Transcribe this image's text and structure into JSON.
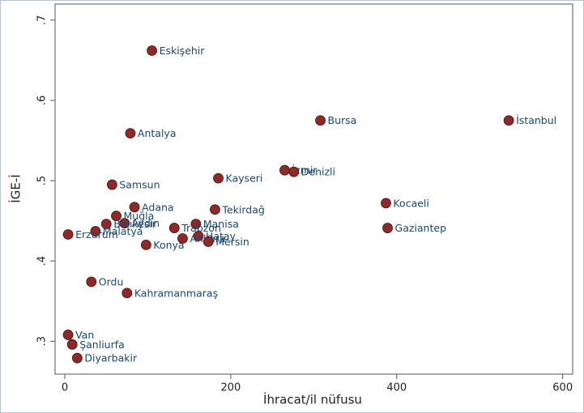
{
  "chart_data": {
    "type": "scatter",
    "xlabel": "İhracat/il nüfusu",
    "ylabel": "İGE-İ",
    "labels": [
      "Eskişehir",
      "Bursa",
      "İstanbul",
      "Antalya",
      "İzmir",
      "Denizli",
      "Kayseri",
      "Samsun",
      "Kocaeli",
      "Adana",
      "Tekirdağ",
      "Muğla",
      "Aydın",
      "Balıkesir",
      "Manisa",
      "Trabzon",
      "Gaziantep",
      "Malatya",
      "Erzurum",
      "Hatay",
      "Ankara",
      "Mersin",
      "Konya",
      "Ordu",
      "Kahramanmaraş",
      "Van",
      "Şanliurfa",
      "Diyarbakir"
    ],
    "x": [
      105,
      308,
      535,
      79,
      265,
      276,
      185,
      57,
      387,
      84,
      181,
      62,
      72,
      50,
      158,
      132,
      389,
      37,
      4,
      161,
      142,
      173,
      98,
      32,
      75,
      4,
      9,
      15
    ],
    "values": [
      0.662,
      0.575,
      0.575,
      0.559,
      0.513,
      0.511,
      0.503,
      0.495,
      0.472,
      0.467,
      0.464,
      0.456,
      0.447,
      0.446,
      0.446,
      0.441,
      0.441,
      0.437,
      0.433,
      0.431,
      0.428,
      0.424,
      0.42,
      0.374,
      0.36,
      0.308,
      0.296,
      0.279
    ],
    "color": "#8c2a2a",
    "label_color": "#1a476f",
    "xlim": [
      -11.7,
      612
    ],
    "ylim": [
      0.259,
      0.72
    ],
    "xticks": [
      0,
      200,
      400,
      600
    ],
    "yticks": [
      {
        "value": 0.3,
        "label": ".3"
      },
      {
        "value": 0.4,
        "label": ".4"
      },
      {
        "value": 0.5,
        "label": ".5"
      },
      {
        "value": 0.6,
        "label": ".6"
      },
      {
        "value": 0.7,
        "label": ".7"
      }
    ],
    "grid": false
  }
}
